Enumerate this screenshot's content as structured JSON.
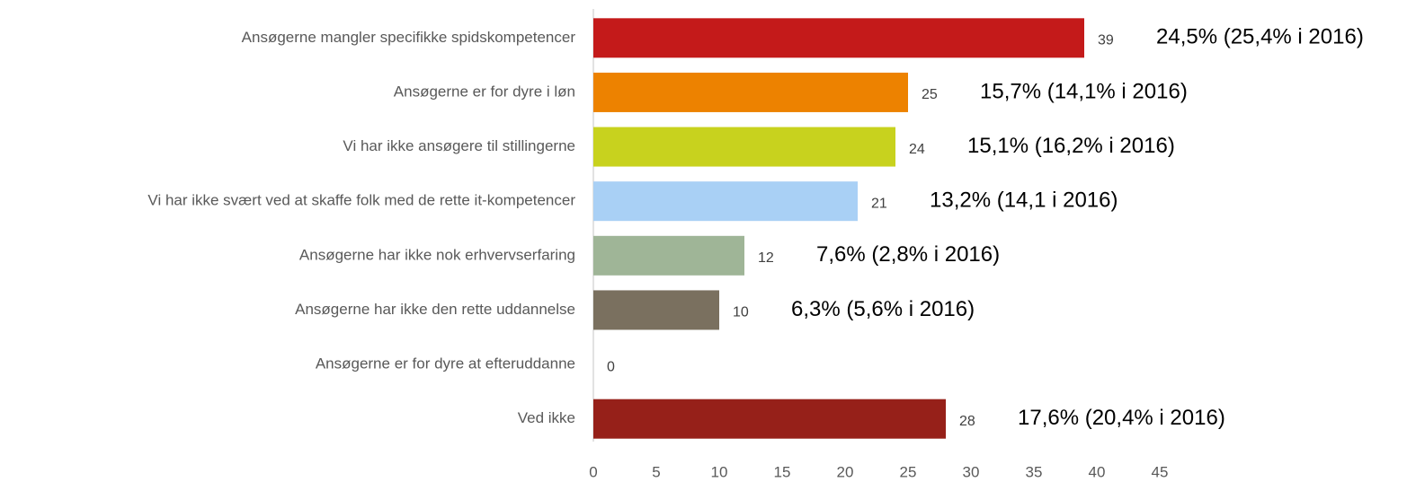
{
  "chart_data": {
    "type": "barh",
    "categories": [
      "Ansøgerne mangler specifikke spidskompetencer",
      "Ansøgerne er for dyre i løn",
      "Vi har ikke ansøgere til stillingerne",
      "Vi har ikke svært ved at skaffe folk med de rette it-kompetencer",
      "Ansøgerne har ikke nok erhvervserfaring",
      "Ansøgerne har ikke den rette uddannelse",
      "Ansøgerne er for dyre at efteruddanne",
      "Ved ikke"
    ],
    "values": [
      39,
      25,
      24,
      21,
      12,
      10,
      0,
      28
    ],
    "colors": [
      "#c41a1a",
      "#ed8200",
      "#c8d21e",
      "#a9d0f5",
      "#9fb597",
      "#7a705f",
      "#8b8b8b",
      "#962019"
    ],
    "annotations": [
      "24,5% (25,4% i 2016)",
      "15,7% (14,1% i 2016)",
      "15,1% (16,2% i 2016)",
      "13,2% (14,1 i 2016)",
      "7,6% (2,8% i 2016)",
      "6,3% (5,6% i 2016)",
      null,
      "17,6% (20,4% i 2016)"
    ],
    "xlim": [
      0,
      45
    ],
    "xticks": [
      0,
      5,
      10,
      15,
      20,
      25,
      30,
      35,
      40,
      45
    ],
    "grid": false
  }
}
